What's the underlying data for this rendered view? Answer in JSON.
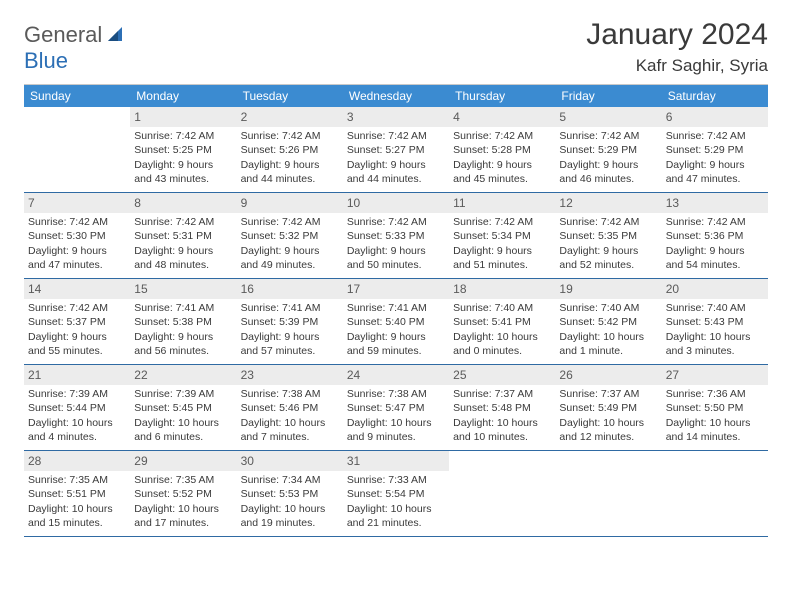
{
  "brand": {
    "part1": "General",
    "part2": "Blue"
  },
  "title": {
    "month": "January 2024",
    "location": "Kafr Saghir, Syria"
  },
  "colors": {
    "header_bg": "#3b8bd1",
    "header_fg": "#ffffff",
    "datebar_bg": "#ececec",
    "row_border": "#2f6aa3",
    "text": "#3a3a3a"
  },
  "day_names": [
    "Sunday",
    "Monday",
    "Tuesday",
    "Wednesday",
    "Thursday",
    "Friday",
    "Saturday"
  ],
  "start_offset": 1,
  "days": [
    {
      "n": "1",
      "sunrise": "7:42 AM",
      "sunset": "5:25 PM",
      "daylight": "9 hours and 43 minutes."
    },
    {
      "n": "2",
      "sunrise": "7:42 AM",
      "sunset": "5:26 PM",
      "daylight": "9 hours and 44 minutes."
    },
    {
      "n": "3",
      "sunrise": "7:42 AM",
      "sunset": "5:27 PM",
      "daylight": "9 hours and 44 minutes."
    },
    {
      "n": "4",
      "sunrise": "7:42 AM",
      "sunset": "5:28 PM",
      "daylight": "9 hours and 45 minutes."
    },
    {
      "n": "5",
      "sunrise": "7:42 AM",
      "sunset": "5:29 PM",
      "daylight": "9 hours and 46 minutes."
    },
    {
      "n": "6",
      "sunrise": "7:42 AM",
      "sunset": "5:29 PM",
      "daylight": "9 hours and 47 minutes."
    },
    {
      "n": "7",
      "sunrise": "7:42 AM",
      "sunset": "5:30 PM",
      "daylight": "9 hours and 47 minutes."
    },
    {
      "n": "8",
      "sunrise": "7:42 AM",
      "sunset": "5:31 PM",
      "daylight": "9 hours and 48 minutes."
    },
    {
      "n": "9",
      "sunrise": "7:42 AM",
      "sunset": "5:32 PM",
      "daylight": "9 hours and 49 minutes."
    },
    {
      "n": "10",
      "sunrise": "7:42 AM",
      "sunset": "5:33 PM",
      "daylight": "9 hours and 50 minutes."
    },
    {
      "n": "11",
      "sunrise": "7:42 AM",
      "sunset": "5:34 PM",
      "daylight": "9 hours and 51 minutes."
    },
    {
      "n": "12",
      "sunrise": "7:42 AM",
      "sunset": "5:35 PM",
      "daylight": "9 hours and 52 minutes."
    },
    {
      "n": "13",
      "sunrise": "7:42 AM",
      "sunset": "5:36 PM",
      "daylight": "9 hours and 54 minutes."
    },
    {
      "n": "14",
      "sunrise": "7:42 AM",
      "sunset": "5:37 PM",
      "daylight": "9 hours and 55 minutes."
    },
    {
      "n": "15",
      "sunrise": "7:41 AM",
      "sunset": "5:38 PM",
      "daylight": "9 hours and 56 minutes."
    },
    {
      "n": "16",
      "sunrise": "7:41 AM",
      "sunset": "5:39 PM",
      "daylight": "9 hours and 57 minutes."
    },
    {
      "n": "17",
      "sunrise": "7:41 AM",
      "sunset": "5:40 PM",
      "daylight": "9 hours and 59 minutes."
    },
    {
      "n": "18",
      "sunrise": "7:40 AM",
      "sunset": "5:41 PM",
      "daylight": "10 hours and 0 minutes."
    },
    {
      "n": "19",
      "sunrise": "7:40 AM",
      "sunset": "5:42 PM",
      "daylight": "10 hours and 1 minute."
    },
    {
      "n": "20",
      "sunrise": "7:40 AM",
      "sunset": "5:43 PM",
      "daylight": "10 hours and 3 minutes."
    },
    {
      "n": "21",
      "sunrise": "7:39 AM",
      "sunset": "5:44 PM",
      "daylight": "10 hours and 4 minutes."
    },
    {
      "n": "22",
      "sunrise": "7:39 AM",
      "sunset": "5:45 PM",
      "daylight": "10 hours and 6 minutes."
    },
    {
      "n": "23",
      "sunrise": "7:38 AM",
      "sunset": "5:46 PM",
      "daylight": "10 hours and 7 minutes."
    },
    {
      "n": "24",
      "sunrise": "7:38 AM",
      "sunset": "5:47 PM",
      "daylight": "10 hours and 9 minutes."
    },
    {
      "n": "25",
      "sunrise": "7:37 AM",
      "sunset": "5:48 PM",
      "daylight": "10 hours and 10 minutes."
    },
    {
      "n": "26",
      "sunrise": "7:37 AM",
      "sunset": "5:49 PM",
      "daylight": "10 hours and 12 minutes."
    },
    {
      "n": "27",
      "sunrise": "7:36 AM",
      "sunset": "5:50 PM",
      "daylight": "10 hours and 14 minutes."
    },
    {
      "n": "28",
      "sunrise": "7:35 AM",
      "sunset": "5:51 PM",
      "daylight": "10 hours and 15 minutes."
    },
    {
      "n": "29",
      "sunrise": "7:35 AM",
      "sunset": "5:52 PM",
      "daylight": "10 hours and 17 minutes."
    },
    {
      "n": "30",
      "sunrise": "7:34 AM",
      "sunset": "5:53 PM",
      "daylight": "10 hours and 19 minutes."
    },
    {
      "n": "31",
      "sunrise": "7:33 AM",
      "sunset": "5:54 PM",
      "daylight": "10 hours and 21 minutes."
    }
  ],
  "labels": {
    "sunrise": "Sunrise:",
    "sunset": "Sunset:",
    "daylight": "Daylight:"
  }
}
